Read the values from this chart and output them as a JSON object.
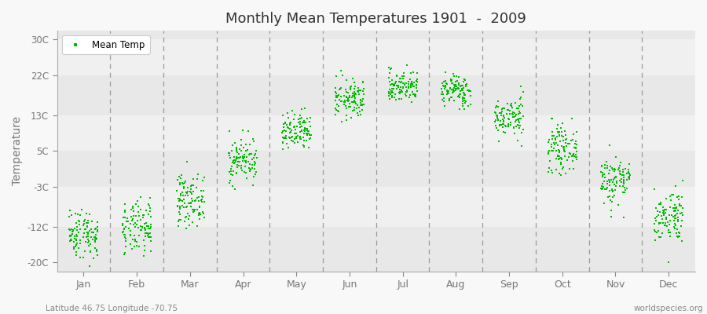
{
  "title": "Monthly Mean Temperatures 1901  -  2009",
  "ylabel": "Temperature",
  "xlabel_labels": [
    "Jan",
    "Feb",
    "Mar",
    "Apr",
    "May",
    "Jun",
    "Jul",
    "Aug",
    "Sep",
    "Oct",
    "Nov",
    "Dec"
  ],
  "ytick_labels": [
    "-20C",
    "-12C",
    "-3C",
    "5C",
    "13C",
    "22C",
    "30C"
  ],
  "ytick_values": [
    -20,
    -12,
    -3,
    5,
    13,
    22,
    30
  ],
  "ylim": [
    -22,
    32
  ],
  "dot_color": "#00bb00",
  "dot_size": 3,
  "legend_label": "Mean Temp",
  "subtitle_left": "Latitude 46.75 Longitude -70.75",
  "subtitle_right": "worldspecies.org",
  "n_years": 109,
  "monthly_means": [
    -13.5,
    -12.5,
    -6.0,
    3.0,
    9.0,
    16.5,
    19.5,
    18.5,
    12.5,
    5.5,
    -1.5,
    -9.5
  ],
  "monthly_stds": [
    2.8,
    3.0,
    2.8,
    2.5,
    2.2,
    2.2,
    1.8,
    1.8,
    2.2,
    2.5,
    2.8,
    3.0
  ],
  "band_colors": [
    "#e8e8e8",
    "#f0f0f0"
  ],
  "vline_color": "#999999",
  "spine_color": "#aaaaaa",
  "tick_color": "#888888",
  "text_color": "#777777",
  "title_color": "#333333",
  "xlim_left": 0.35,
  "xlim_right": 12.65,
  "x_spread": 0.28
}
